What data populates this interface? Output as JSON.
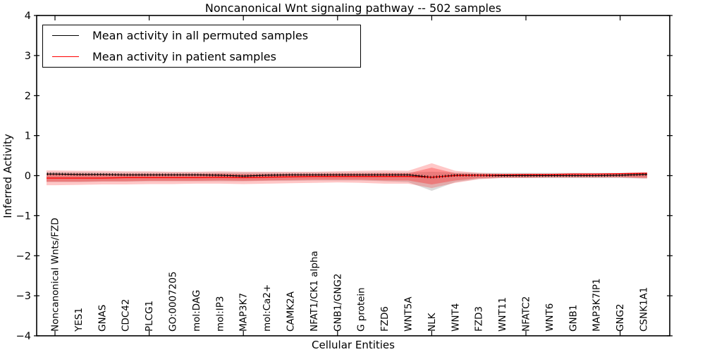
{
  "figure": {
    "title": "Noncanonical Wnt signaling pathway -- 502 samples",
    "background": "#ffffff"
  },
  "legend": {
    "position": "upper left",
    "items": [
      {
        "label": "Mean activity in all permuted samples",
        "color": "#000000"
      },
      {
        "label": "Mean activity in patient samples",
        "color": "#ff0000"
      }
    ]
  },
  "chart_data": {
    "type": "line",
    "title": "Noncanonical Wnt signaling pathway -- 502 samples",
    "xlabel": "Cellular Entities",
    "ylabel": "Inferred Activity",
    "ylim": [
      -4,
      4
    ],
    "grid": false,
    "ytick_labels": [
      "4",
      "3",
      "2",
      "1",
      "0",
      "−1",
      "−2",
      "−3",
      "−4"
    ],
    "ytick_values": [
      4,
      3,
      2,
      1,
      0,
      -1,
      -2,
      -3,
      -4
    ],
    "xtick_every": 4,
    "categories": [
      "Noncanonical Wnts/FZD",
      "YES1",
      "GNAS",
      "CDC42",
      "PLCG1",
      "GO:0007205",
      "mol:DAG",
      "mol:IP3",
      "MAP3K7",
      "mol:Ca2+",
      "CAMK2A",
      "NFAT1/CK1 alpha",
      "GNB1/GNG2",
      "G protein",
      "FZD6",
      "WNT5A",
      "NLK",
      "WNT4",
      "FZD3",
      "WNT11",
      "NFATC2",
      "WNT6",
      "GNB1",
      "MAP3K7IP1",
      "GNG2",
      "CSNK1A1"
    ],
    "series": [
      {
        "name": "Mean activity in all permuted samples",
        "color": "#000000",
        "marker": "tick",
        "values": [
          0.04,
          0.03,
          0.03,
          0.02,
          0.02,
          0.02,
          0.02,
          0.01,
          -0.01,
          0.01,
          0.02,
          0.02,
          0.02,
          0.02,
          0.02,
          0.02,
          -0.04,
          0.01,
          0.01,
          0.0,
          0.0,
          0.0,
          0.0,
          0.0,
          0.01,
          0.03
        ]
      },
      {
        "name": "Mean activity in patient samples",
        "color": "#ff0000",
        "marker": "none",
        "values": [
          -0.06,
          -0.06,
          -0.06,
          -0.05,
          -0.05,
          -0.05,
          -0.05,
          -0.04,
          -0.05,
          -0.04,
          -0.03,
          -0.02,
          -0.02,
          -0.02,
          -0.02,
          -0.02,
          -0.04,
          0.0,
          0.01,
          0.02,
          0.03,
          0.03,
          0.04,
          0.04,
          0.05,
          0.06
        ]
      }
    ],
    "bands": [
      {
        "name": "permuted-samples-spread",
        "color": "#888888",
        "opacity": 0.3,
        "upper": [
          0.09,
          0.09,
          0.08,
          0.08,
          0.08,
          0.08,
          0.08,
          0.08,
          0.08,
          0.08,
          0.08,
          0.08,
          0.08,
          0.08,
          0.08,
          0.08,
          0.1,
          0.08,
          0.07,
          0.07,
          0.07,
          0.07,
          0.07,
          0.07,
          0.07,
          0.08
        ],
        "lower": [
          -0.16,
          -0.16,
          -0.15,
          -0.15,
          -0.14,
          -0.14,
          -0.14,
          -0.14,
          -0.14,
          -0.13,
          -0.13,
          -0.12,
          -0.12,
          -0.12,
          -0.14,
          -0.16,
          -0.38,
          -0.16,
          -0.08,
          -0.06,
          -0.06,
          -0.06,
          -0.06,
          -0.06,
          -0.06,
          -0.07
        ]
      },
      {
        "name": "patient-samples-spread-outer",
        "color": "#ff0000",
        "opacity": 0.22,
        "upper": [
          0.13,
          0.12,
          0.12,
          0.11,
          0.11,
          0.1,
          0.1,
          0.11,
          0.1,
          0.1,
          0.1,
          0.1,
          0.11,
          0.12,
          0.13,
          0.12,
          0.31,
          0.12,
          0.07,
          0.05,
          0.05,
          0.05,
          0.05,
          0.05,
          0.05,
          0.08
        ],
        "lower": [
          -0.24,
          -0.23,
          -0.22,
          -0.22,
          -0.21,
          -0.21,
          -0.2,
          -0.2,
          -0.21,
          -0.2,
          -0.19,
          -0.18,
          -0.17,
          -0.18,
          -0.2,
          -0.2,
          -0.31,
          -0.18,
          -0.09,
          -0.06,
          -0.06,
          -0.05,
          -0.05,
          -0.05,
          -0.05,
          -0.07
        ],
        "name_note": "light pink outer envelope"
      },
      {
        "name": "patient-samples-spread-inner",
        "color": "#ff0000",
        "opacity": 0.28,
        "upper": [
          0.05,
          0.05,
          0.04,
          0.04,
          0.04,
          0.04,
          0.04,
          0.05,
          0.04,
          0.04,
          0.04,
          0.04,
          0.05,
          0.05,
          0.06,
          0.06,
          0.2,
          0.06,
          0.04,
          0.03,
          0.03,
          0.03,
          0.03,
          0.03,
          0.03,
          0.05
        ],
        "lower": [
          -0.15,
          -0.15,
          -0.14,
          -0.14,
          -0.13,
          -0.13,
          -0.13,
          -0.12,
          -0.13,
          -0.12,
          -0.11,
          -0.1,
          -0.1,
          -0.1,
          -0.12,
          -0.12,
          -0.22,
          -0.12,
          -0.06,
          -0.04,
          -0.04,
          -0.03,
          -0.03,
          -0.03,
          -0.03,
          -0.05
        ]
      }
    ]
  }
}
